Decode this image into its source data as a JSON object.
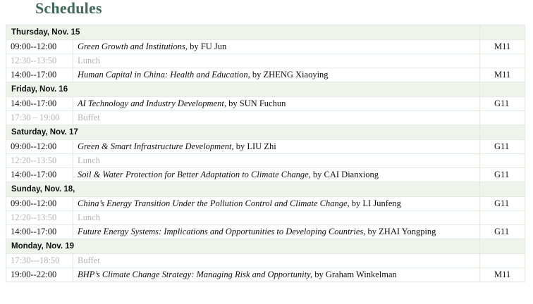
{
  "heading": "Schedules",
  "days": [
    {
      "label": "Thursday, Nov. 15",
      "items": [
        {
          "time": "09:00--12:00",
          "title": "Green Growth and Institutions,",
          "by": " by FU Jun",
          "room": "M11",
          "break": false
        },
        {
          "time": "12:30--13:50",
          "title": "",
          "by": "Lunch",
          "room": "",
          "break": true
        },
        {
          "time": "14:00--17:00",
          "title": "Human Capital in China: Health and Education,",
          "by": " by ZHENG Xiaoying",
          "room": "M11",
          "break": false
        }
      ]
    },
    {
      "label": "Friday, Nov. 16",
      "items": [
        {
          "time": "14:00--17:00",
          "title": "AI Technology and Industry Development,",
          "by": " by SUN Fuchun",
          "room": "G11",
          "break": false
        },
        {
          "time": "17:30 – 19:00",
          "title": "",
          "by": "Buffet",
          "room": "",
          "break": true
        }
      ]
    },
    {
      "label": "Saturday, Nov. 17",
      "items": [
        {
          "time": "09:00--12:00",
          "title": "Green & Smart Infrastructure Development,",
          "by": " by LIU Zhi",
          "room": "G11",
          "break": false
        },
        {
          "time": "12:20--13:50",
          "title": "",
          "by": "Lunch",
          "room": "",
          "break": true
        },
        {
          "time": "14:00--17:00",
          "title": "Soil & Water Protection for Better Adaptation to Climate Change,",
          "by": " by CAI Dianxiong",
          "room": "G11",
          "break": false
        }
      ]
    },
    {
      "label": "Sunday, Nov. 18,",
      "items": [
        {
          "time": "09:00--12:00",
          "title": "China’s Energy Transition Under the Pollution Control and Climate Change,",
          "by": " by LI Junfeng",
          "room": "G11",
          "break": false
        },
        {
          "time": "12:20--13:50",
          "title": "",
          "by": "Lunch",
          "room": "",
          "break": true
        },
        {
          "time": "14:00--17:00",
          "title": "Future Energy Systems: Implications and Opportunities to Developing Countries,",
          "by": " by ZHAI Yongping",
          "room": "G11",
          "break": false
        }
      ]
    },
    {
      "label": "Monday, Nov. 19",
      "items": [
        {
          "time": "17:30---18:50",
          "title": "",
          "by": "Buffet",
          "room": "",
          "break": true
        },
        {
          "time": "19:00--22:00",
          "title": "BHP’s Climate Change Strategy: Managing Risk and Opportunity,",
          "by": " by Graham Winkelman",
          "room": "M11",
          "break": false
        }
      ]
    }
  ]
}
